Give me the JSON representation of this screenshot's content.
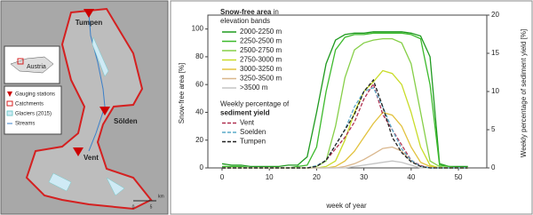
{
  "map": {
    "stations": [
      "Tumpen",
      "Sölden",
      "Vent"
    ],
    "country": "Austria",
    "legend": [
      "Gauging stations",
      "Catchments",
      "Glaciers (2015)",
      "Streams"
    ],
    "scale": [
      "0",
      "5",
      "km"
    ]
  },
  "chart_data": {
    "type": "line",
    "y_label": "Snow-free area [%]",
    "y2_label": "Weekly percentage of sediment yield [%]",
    "x_label": "week of year",
    "snow_legend_title": {
      "bold": "Snow-free area",
      "text": " in",
      "line2": "elevation bands"
    },
    "sediment_legend_title": {
      "line1": "Weekly percentage of",
      "bold": "sediment yield"
    },
    "x": [
      0,
      2,
      4,
      6,
      8,
      10,
      12,
      14,
      16,
      18,
      20,
      22,
      24,
      26,
      28,
      30,
      32,
      34,
      36,
      38,
      40,
      42,
      44,
      46,
      48,
      50,
      52
    ],
    "xlim": [
      -3,
      56
    ],
    "xticks": [
      0,
      10,
      20,
      30,
      40,
      50
    ],
    "ylim": [
      0,
      110
    ],
    "yticks": [
      0,
      20,
      40,
      60,
      80,
      100
    ],
    "y2lim": [
      0,
      20
    ],
    "y2ticks": [
      0,
      5,
      10,
      15,
      20
    ],
    "series": [
      {
        "name": "2000-2250 m",
        "color": "#1f9a1f",
        "values": [
          3,
          2,
          2,
          1,
          1,
          1,
          1,
          2,
          2,
          8,
          40,
          75,
          92,
          96,
          97,
          97,
          98,
          98,
          98,
          98,
          97,
          95,
          80,
          3,
          1,
          1,
          1
        ]
      },
      {
        "name": "2250-2500 m",
        "color": "#3cba2c",
        "values": [
          1,
          1,
          1,
          0,
          0,
          0,
          0,
          0,
          1,
          2,
          15,
          55,
          85,
          94,
          96,
          96,
          97,
          97,
          97,
          97,
          96,
          93,
          60,
          2,
          1,
          0,
          0
        ]
      },
      {
        "name": "2500-2750 m",
        "color": "#86cf48",
        "values": [
          0,
          0,
          0,
          0,
          0,
          0,
          0,
          0,
          0,
          0,
          1,
          5,
          30,
          65,
          85,
          90,
          92,
          93,
          93,
          90,
          75,
          40,
          5,
          1,
          0,
          0,
          0
        ]
      },
      {
        "name": "2750-3000 m",
        "color": "#c9dc2a",
        "values": [
          0,
          0,
          0,
          0,
          0,
          0,
          0,
          0,
          0,
          0,
          0,
          1,
          5,
          20,
          40,
          55,
          62,
          70,
          68,
          60,
          40,
          15,
          2,
          0,
          0,
          0,
          0
        ]
      },
      {
        "name": "3000-3250 m",
        "color": "#e2c23e",
        "values": [
          0,
          0,
          0,
          0,
          0,
          0,
          0,
          0,
          0,
          0,
          0,
          0,
          1,
          5,
          12,
          22,
          32,
          40,
          38,
          30,
          15,
          4,
          1,
          0,
          0,
          0,
          0
        ]
      },
      {
        "name": "3250-3500 m",
        "color": "#d9b68c",
        "values": [
          0,
          0,
          0,
          0,
          0,
          0,
          0,
          0,
          0,
          0,
          0,
          0,
          0,
          1,
          3,
          6,
          10,
          14,
          15,
          12,
          5,
          1,
          0,
          0,
          0,
          0,
          0
        ]
      },
      {
        "name": ">3500 m",
        "color": "#c4c4c4",
        "values": [
          0,
          0,
          0,
          0,
          0,
          0,
          0,
          0,
          0,
          0,
          0,
          0,
          0,
          0,
          1,
          2,
          3,
          4,
          5,
          4,
          2,
          0,
          0,
          0,
          0,
          0,
          0
        ]
      },
      {
        "name": "Vent",
        "color": "#b03050",
        "axis": "y2",
        "style": "dashed",
        "values": [
          0,
          0,
          0,
          0,
          0,
          0,
          0,
          0,
          0,
          0,
          0.2,
          1,
          2.5,
          4,
          6,
          9,
          11,
          7,
          5,
          3,
          1,
          0.3,
          0,
          0,
          0,
          0,
          0
        ]
      },
      {
        "name": "Soelden",
        "color": "#5aaac8",
        "axis": "y2",
        "style": "dashed",
        "values": [
          0,
          0,
          0,
          0,
          0,
          0,
          0,
          0,
          0,
          0,
          0.3,
          1,
          3,
          5,
          8,
          10,
          10.5,
          8,
          5,
          2.5,
          1,
          0.2,
          0,
          0,
          0,
          0,
          0
        ]
      },
      {
        "name": "Tumpen",
        "color": "#222222",
        "axis": "y2",
        "style": "dashed",
        "values": [
          0,
          0,
          0,
          0,
          0,
          0,
          0,
          0,
          0,
          0,
          0.2,
          1,
          3,
          5,
          7,
          10,
          11.5,
          8,
          4,
          2,
          0.8,
          0.2,
          0,
          0,
          0,
          0,
          0
        ]
      }
    ]
  }
}
